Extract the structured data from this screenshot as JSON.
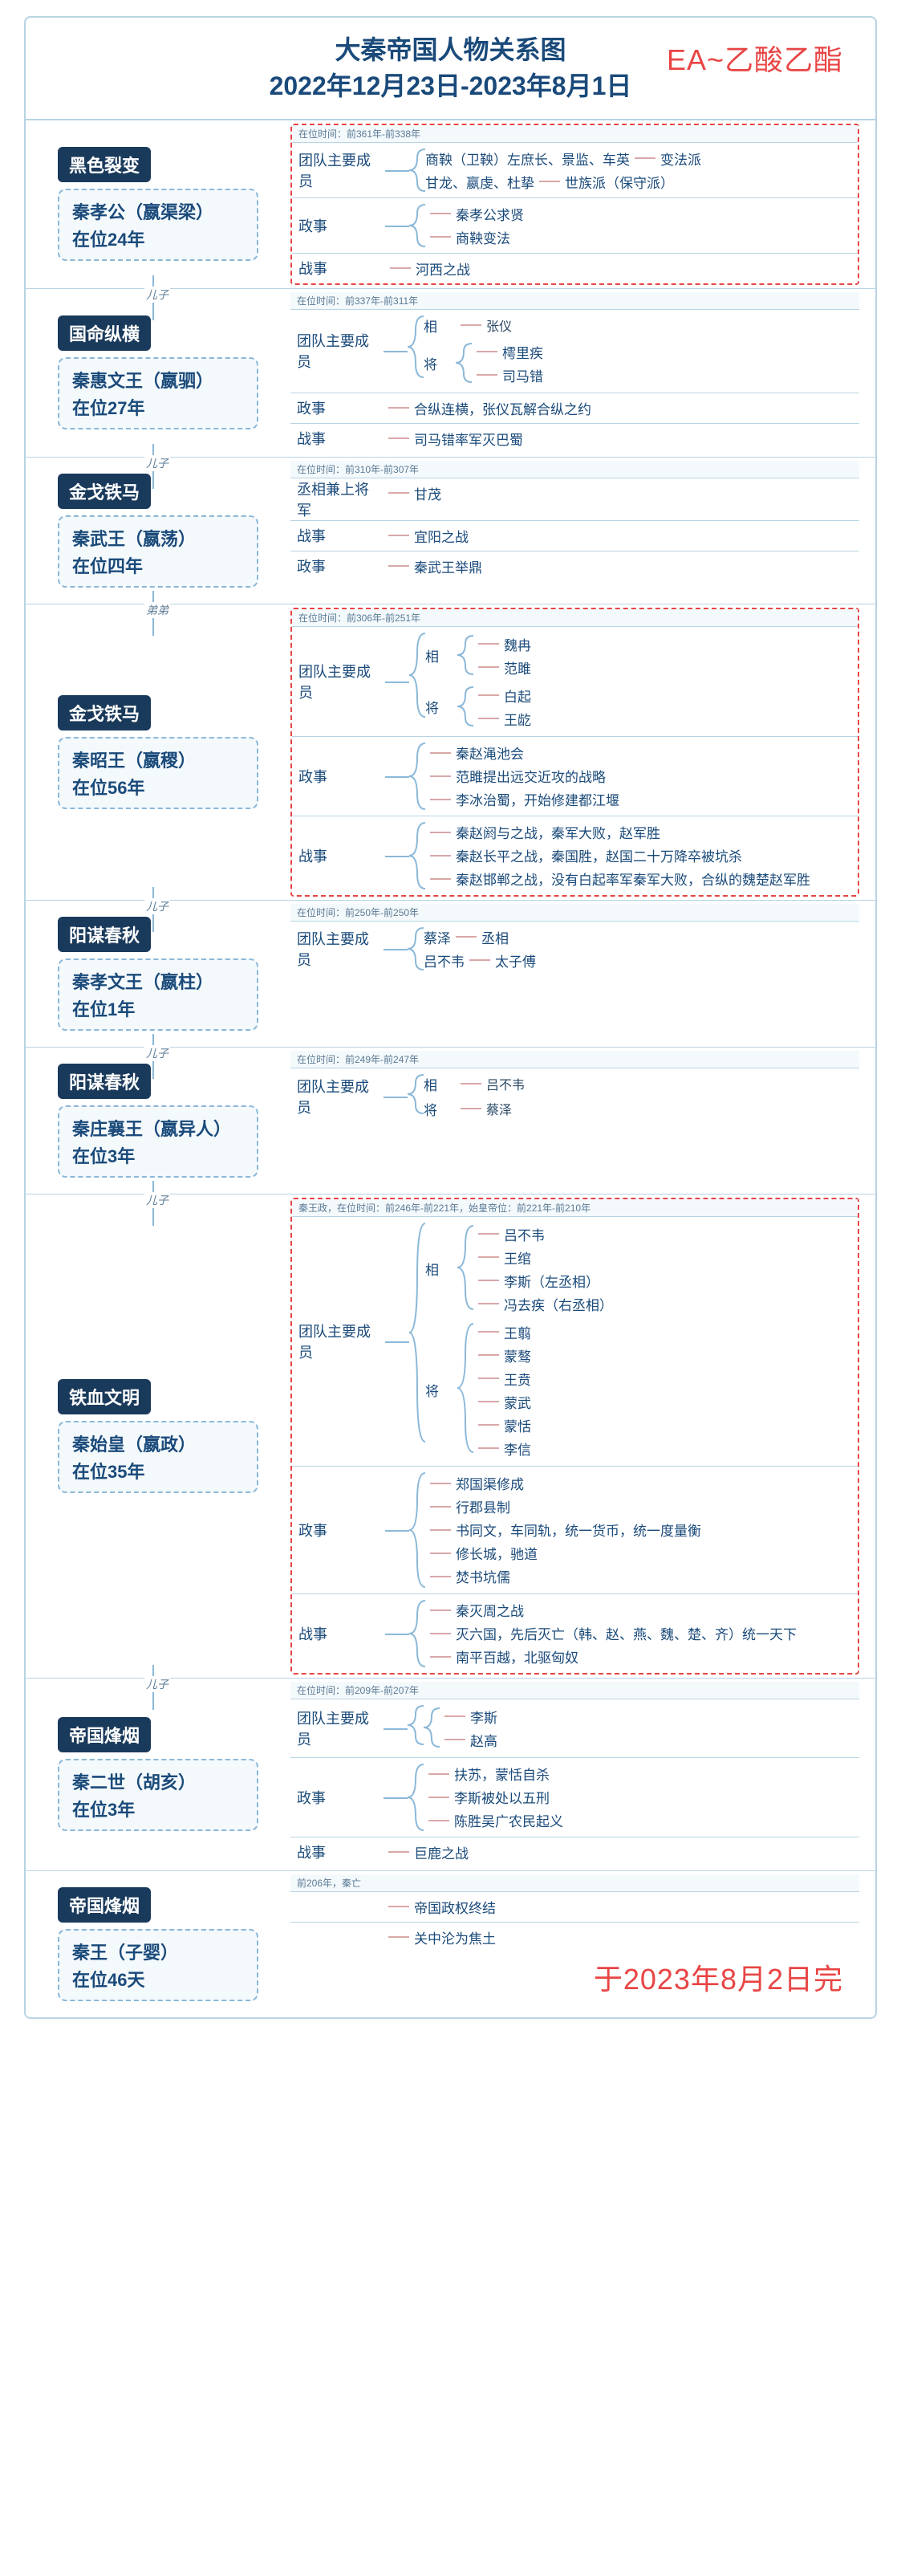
{
  "title_line1": "大秦帝国人物关系图",
  "title_line2": "2022年12月23日-2023年8月1日",
  "watermark_top": "EA~乙酸乙酯",
  "watermark_bottom": "于2023年8月2日完",
  "colors": {
    "accent": "#1a4a7a",
    "border": "#b8d4e3",
    "dashed": "#8bb8d8",
    "red": "#e84545",
    "bg_box": "#f4f9fc",
    "chapter_bg": "#1a3a5c"
  },
  "rulers": [
    {
      "chapter": "黑色裂变",
      "name": "秦孝公（嬴渠梁）",
      "reign": "在位24年",
      "highlight": true,
      "rel_next": "儿子",
      "time": "在位时间：前361年-前338年",
      "sections": [
        {
          "label": "团队主要成员",
          "groups": [
            {
              "row": [
                "商鞅（卫鞅）左庶长、景监、车英",
                "变法派"
              ]
            },
            {
              "row": [
                "甘龙、嬴虔、杜挚",
                "世族派（保守派）"
              ]
            }
          ]
        },
        {
          "label": "政事",
          "lines": [
            "秦孝公求贤",
            "商鞅变法"
          ]
        },
        {
          "label": "战事",
          "lines": [
            "河西之战"
          ]
        }
      ]
    },
    {
      "chapter": "国命纵横",
      "name": "秦惠文王（嬴驷）",
      "reign": "在位27年",
      "highlight": false,
      "rel_next": "儿子",
      "time": "在位时间：前337年-前311年",
      "sections": [
        {
          "label": "团队主要成员",
          "subgroups": [
            {
              "sub": "相",
              "items": [
                "张仪"
              ]
            },
            {
              "sub": "将",
              "items": [
                "樗里疾",
                "司马错"
              ]
            }
          ]
        },
        {
          "label": "政事",
          "lines": [
            "合纵连横，张仪瓦解合纵之约"
          ]
        },
        {
          "label": "战事",
          "lines": [
            "司马错率军灭巴蜀"
          ]
        }
      ]
    },
    {
      "chapter": "金戈铁马",
      "name": "秦武王（嬴荡）",
      "reign": "在位四年",
      "highlight": false,
      "rel_next": "弟弟",
      "time": "在位时间：前310年-前307年",
      "sections": [
        {
          "label": "丞相兼上将军",
          "lines": [
            "甘茂"
          ]
        },
        {
          "label": "战事",
          "lines": [
            "宜阳之战"
          ]
        },
        {
          "label": "政事",
          "lines": [
            "秦武王举鼎"
          ]
        }
      ]
    },
    {
      "chapter": "金戈铁马",
      "name": "秦昭王（嬴稷）",
      "reign": "在位56年",
      "highlight": true,
      "rel_next": "儿子",
      "time": "在位时间：前306年-前251年",
      "sections": [
        {
          "label": "团队主要成员",
          "subgroups": [
            {
              "sub": "相",
              "items": [
                "魏冉",
                "范雎"
              ]
            },
            {
              "sub": "将",
              "items": [
                "白起",
                "王龁"
              ]
            }
          ]
        },
        {
          "label": "政事",
          "lines": [
            "秦赵渑池会",
            "范雎提出远交近攻的战略",
            "李冰治蜀，开始修建都江堰"
          ]
        },
        {
          "label": "战事",
          "lines": [
            "秦赵阏与之战，秦军大败，赵军胜",
            "秦赵长平之战，秦国胜，赵国二十万降卒被坑杀",
            "秦赵邯郸之战，没有白起率军秦军大败，合纵的魏楚赵军胜"
          ]
        }
      ]
    },
    {
      "chapter": "阳谋春秋",
      "name": "秦孝文王（嬴柱）",
      "reign": "在位1年",
      "highlight": false,
      "rel_next": "儿子",
      "time": "在位时间：前250年-前250年",
      "sections": [
        {
          "label": "团队主要成员",
          "pairs": [
            {
              "left": "蔡泽",
              "right": "丞相"
            },
            {
              "left": "吕不韦",
              "right": "太子傅"
            }
          ]
        }
      ]
    },
    {
      "chapter": "阳谋春秋",
      "name": "秦庄襄王（嬴异人）",
      "reign": "在位3年",
      "highlight": false,
      "rel_next": "儿子",
      "time": "在位时间：前249年-前247年",
      "sections": [
        {
          "label": "团队主要成员",
          "subgroups": [
            {
              "sub": "相",
              "items": [
                "吕不韦"
              ]
            },
            {
              "sub": "将",
              "items": [
                "蔡泽"
              ]
            }
          ]
        }
      ]
    },
    {
      "chapter": "铁血文明",
      "name": "秦始皇（嬴政）",
      "reign": "在位35年",
      "highlight": true,
      "rel_next": "儿子",
      "time": "秦王政，在位时间：前246年-前221年，始皇帝位：前221年-前210年",
      "sections": [
        {
          "label": "团队主要成员",
          "subgroups": [
            {
              "sub": "相",
              "items": [
                "吕不韦",
                "王绾",
                "李斯（左丞相）",
                "冯去疾（右丞相）"
              ]
            },
            {
              "sub": "将",
              "items": [
                "王翦",
                "蒙骜",
                "王贲",
                "蒙武",
                "蒙恬",
                "李信"
              ]
            }
          ]
        },
        {
          "label": "政事",
          "lines": [
            "郑国渠修成",
            "行郡县制",
            "书同文，车同轨，统一货币，统一度量衡",
            "修长城，驰道",
            "焚书坑儒"
          ]
        },
        {
          "label": "战事",
          "lines": [
            "秦灭周之战",
            "灭六国，先后灭亡（韩、赵、燕、魏、楚、齐）统一天下",
            "南平百越，北驱匈奴"
          ]
        }
      ]
    },
    {
      "chapter": "帝国烽烟",
      "name": "秦二世（胡亥）",
      "reign": "在位3年",
      "highlight": false,
      "rel_next": null,
      "time": "在位时间：前209年-前207年",
      "sections": [
        {
          "label": "团队主要成员",
          "subgroups": [
            {
              "sub": "",
              "items": [
                "李斯",
                "赵高"
              ]
            }
          ]
        },
        {
          "label": "政事",
          "lines": [
            "扶苏，蒙恬自杀",
            "李斯被处以五刑",
            "陈胜吴广农民起义"
          ]
        },
        {
          "label": "战事",
          "lines": [
            "巨鹿之战"
          ]
        }
      ]
    },
    {
      "chapter": "帝国烽烟",
      "name": "秦王（子婴）",
      "reign": "在位46天",
      "highlight": false,
      "rel_next": null,
      "time": "前206年，秦亡",
      "sections": [
        {
          "label": "",
          "lines": [
            "帝国政权终结"
          ]
        },
        {
          "label": "",
          "lines": [
            "关中沦为焦土"
          ]
        }
      ]
    }
  ]
}
